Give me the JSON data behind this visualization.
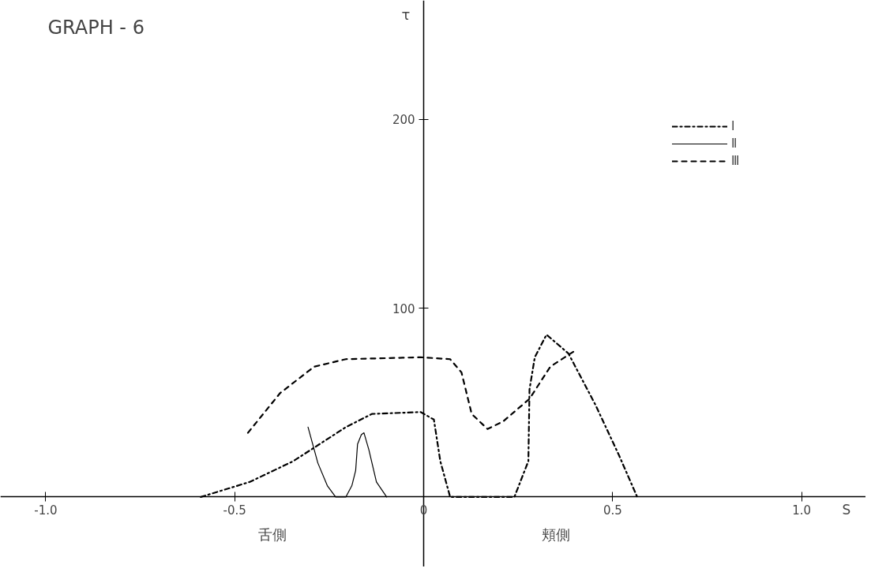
{
  "chart_data": {
    "type": "line",
    "title": "GRAPH - 6",
    "xlabel": "S",
    "ylabel": "τ",
    "annotations": [
      "舌側",
      "頬側"
    ],
    "xlim": [
      -1.12,
      1.17
    ],
    "ylim": [
      -37,
      263
    ],
    "xticks": [
      {
        "value": -1.0,
        "label": "-1.0"
      },
      {
        "value": -0.5,
        "label": "-0.5"
      },
      0,
      0.5,
      {
        "value": 1.0,
        "label": "1.0"
      }
    ],
    "yticks": [
      100,
      200
    ],
    "grid": false,
    "legend": "top right",
    "series": [
      {
        "name": "Ⅰ",
        "color": "#000000",
        "line_style": "dashdot",
        "x": [
          -0.59,
          -0.46,
          -0.345,
          -0.206,
          -0.137,
          -0.008,
          0.027,
          0.044,
          0.07,
          0.24,
          0.277,
          0.28,
          0.294,
          0.325,
          0.383,
          0.454,
          0.517,
          0.565
        ],
        "values": [
          0,
          8,
          19,
          37,
          44,
          45,
          41,
          19,
          0,
          0,
          19,
          57,
          74,
          86,
          76,
          49,
          22,
          0
        ]
      },
      {
        "name": "Ⅱ",
        "color": "#000000",
        "line_style": "solid",
        "x": [
          -0.306,
          -0.28,
          -0.255,
          -0.233,
          -0.206,
          -0.19,
          -0.18,
          -0.175,
          -0.165,
          -0.158,
          -0.145,
          -0.125,
          -0.098
        ],
        "values": [
          37,
          18,
          6,
          0,
          0,
          6,
          14,
          28,
          33,
          34,
          25,
          8,
          0
        ]
      },
      {
        "name": "Ⅲ",
        "color": "#000000",
        "line_style": "dashed",
        "x": [
          -0.465,
          -0.38,
          -0.29,
          -0.206,
          -0.008,
          0.07,
          0.1,
          0.127,
          0.169,
          0.21,
          0.28,
          0.335,
          0.404
        ],
        "values": [
          34,
          55,
          69,
          73,
          74,
          73,
          66,
          44,
          36,
          40,
          52,
          69,
          78
        ]
      }
    ]
  }
}
